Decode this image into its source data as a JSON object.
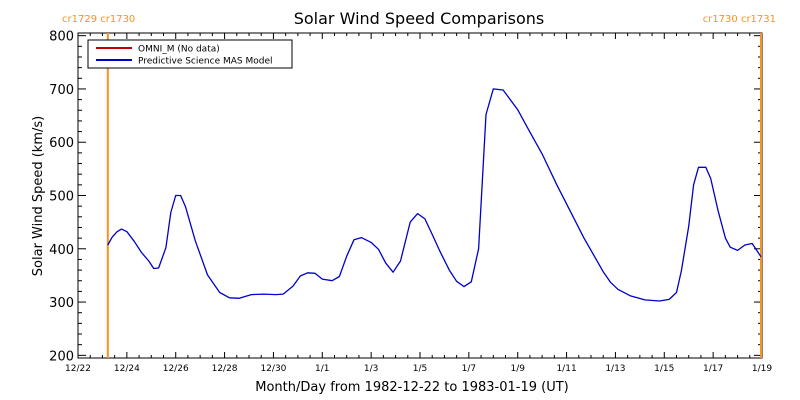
{
  "chart_data": {
    "type": "line",
    "title": "Solar Wind Speed Comparisons",
    "xlabel": "Month/Day from 1982-12-22 to 1983-01-19 (UT)",
    "ylabel": "Solar Wind Speed (km/s)",
    "ylim": [
      195,
      805
    ],
    "xlim": [
      0,
      28
    ],
    "x_units": "days since 1982-12-22",
    "x_ticks": [
      {
        "x": 0,
        "label": "12/22"
      },
      {
        "x": 2,
        "label": "12/24"
      },
      {
        "x": 4,
        "label": "12/26"
      },
      {
        "x": 6,
        "label": "12/28"
      },
      {
        "x": 8,
        "label": "12/30"
      },
      {
        "x": 10,
        "label": "1/1"
      },
      {
        "x": 12,
        "label": "1/3"
      },
      {
        "x": 14,
        "label": "1/5"
      },
      {
        "x": 16,
        "label": "1/7"
      },
      {
        "x": 18,
        "label": "1/9"
      },
      {
        "x": 20,
        "label": "1/11"
      },
      {
        "x": 22,
        "label": "1/13"
      },
      {
        "x": 24,
        "label": "1/15"
      },
      {
        "x": 26,
        "label": "1/17"
      },
      {
        "x": 28,
        "label": "1/19"
      }
    ],
    "y_ticks": [
      {
        "y": 200,
        "label": "200"
      },
      {
        "y": 300,
        "label": "300"
      },
      {
        "y": 400,
        "label": "400"
      },
      {
        "y": 500,
        "label": "500"
      },
      {
        "y": 600,
        "label": "600"
      },
      {
        "y": 700,
        "label": "700"
      },
      {
        "y": 800,
        "label": "800"
      }
    ],
    "legend": {
      "placement": "top-left",
      "entries": [
        {
          "label": "OMNI_M (No data)",
          "color": "#c00000"
        },
        {
          "label": "Predictive Science MAS Model",
          "color": "#0000cc"
        }
      ]
    },
    "markers": [
      {
        "x": 1.22,
        "top_label": "cr1729 cr1730",
        "color": "#f7931e"
      },
      {
        "x": 27.96,
        "top_label": "cr1730 cr1731",
        "color": "#f7931e"
      }
    ],
    "series": [
      {
        "name": "Predictive Science MAS Model",
        "color": "#0000cc",
        "x": [
          1.22,
          1.4,
          1.6,
          1.78,
          2.0,
          2.3,
          2.6,
          2.9,
          3.1,
          3.3,
          3.6,
          3.8,
          4.0,
          4.2,
          4.4,
          4.8,
          5.3,
          5.8,
          6.2,
          6.6,
          7.1,
          7.6,
          8.1,
          8.4,
          8.8,
          9.1,
          9.4,
          9.7,
          10.0,
          10.4,
          10.7,
          11.0,
          11.3,
          11.6,
          12.0,
          12.3,
          12.6,
          12.9,
          13.2,
          13.6,
          13.9,
          14.2,
          14.5,
          14.8,
          15.2,
          15.5,
          15.8,
          16.1,
          16.4,
          16.7,
          17.0,
          17.4,
          18.0,
          18.5,
          19.0,
          19.6,
          20.2,
          20.7,
          21.2,
          21.5,
          21.8,
          22.1,
          22.6,
          23.2,
          23.8,
          24.2,
          24.5,
          24.7,
          25.0,
          25.2,
          25.4,
          25.7,
          25.9,
          26.2,
          26.5,
          26.7,
          27.0,
          27.3,
          27.6,
          27.96
        ],
        "y": [
          407,
          422,
          432,
          437,
          432,
          414,
          393,
          377,
          363,
          364,
          402,
          468,
          500,
          500,
          479,
          415,
          351,
          318,
          308,
          307,
          314,
          315,
          314,
          315,
          330,
          349,
          355,
          354,
          343,
          340,
          348,
          386,
          417,
          421,
          412,
          399,
          373,
          356,
          377,
          450,
          466,
          456,
          427,
          397,
          360,
          339,
          329,
          338,
          400,
          652,
          700,
          698,
          661,
          619,
          578,
          520,
          466,
          421,
          381,
          357,
          337,
          324,
          312,
          304,
          302,
          305,
          318,
          359,
          442,
          520,
          553,
          553,
          532,
          472,
          420,
          403,
          397,
          407,
          410,
          385
        ]
      }
    ]
  }
}
